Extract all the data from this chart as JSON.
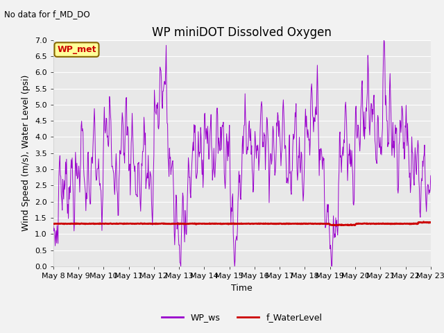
{
  "title": "WP miniDOT Dissolved Oxygen",
  "top_left_text": "No data for f_MD_DO",
  "ylabel": "Wind Speed (m/s), Water Level (psi)",
  "xlabel": "Time",
  "legend_label1": "WP_ws",
  "legend_label2": "f_WaterLevel",
  "wp_met_label": "WP_met",
  "color_ws": "#9900cc",
  "color_wl": "#cc0000",
  "color_wp_met_text": "#cc0000",
  "color_wp_met_bg": "#ffff99",
  "color_wp_met_border": "#886600",
  "ylim": [
    0.0,
    7.0
  ],
  "yticks": [
    0.0,
    0.5,
    1.0,
    1.5,
    2.0,
    2.5,
    3.0,
    3.5,
    4.0,
    4.5,
    5.0,
    5.5,
    6.0,
    6.5,
    7.0
  ],
  "plot_bg": "#e8e8e8",
  "fig_bg": "#f2f2f2",
  "grid_color": "#ffffff",
  "title_fontsize": 12,
  "label_fontsize": 9,
  "tick_fontsize": 8,
  "xtick_labels": [
    "May 8",
    "May 9",
    "May 10",
    "May 11",
    "May 12",
    "May 13",
    "May 14",
    "May 15",
    "May 16",
    "May 17",
    "May 18",
    "May 19",
    "May 20",
    "May 21",
    "May 22",
    "May 23"
  ]
}
